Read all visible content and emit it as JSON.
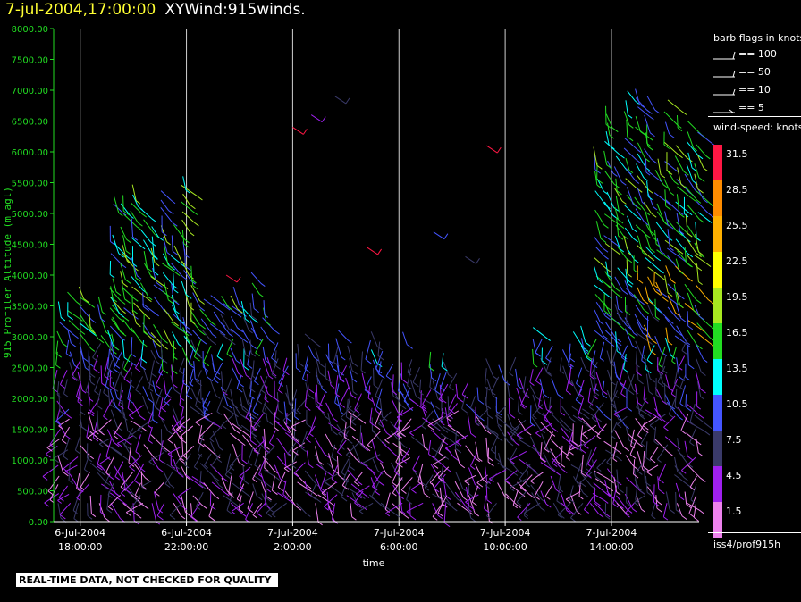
{
  "title": {
    "date": "7-jul-2004,17:00:00",
    "main": "XYWind:915winds."
  },
  "legend_barbs": {
    "title": "barb flags in knots",
    "items": [
      "== 100",
      "== 50",
      "== 10",
      "== 5"
    ]
  },
  "legend_speed": {
    "title": "wind-speed: knots",
    "levels": [
      {
        "label": "31.5",
        "color": "#ff1744"
      },
      {
        "label": "28.5",
        "color": "#ff8c00"
      },
      {
        "label": "25.5",
        "color": "#ffb000"
      },
      {
        "label": "22.5",
        "color": "#ffff00"
      },
      {
        "label": "19.5",
        "color": "#a8e820"
      },
      {
        "label": "16.5",
        "color": "#22dd22"
      },
      {
        "label": "13.5",
        "color": "#00ffff"
      },
      {
        "label": "10.5",
        "color": "#4455ff"
      },
      {
        "label": "7.5",
        "color": "#3a3a6a"
      },
      {
        "label": "4.5",
        "color": "#a020f0"
      },
      {
        "label": "1.5",
        "color": "#ee82ee"
      }
    ]
  },
  "source": "iss4/prof915h",
  "footer_note": "REAL-TIME DATA, NOT CHECKED FOR QUALITY",
  "chart_data": {
    "type": "scatter",
    "title": "7-jul-2004,17:00:00 XYWind:915winds.",
    "xlabel": "time",
    "ylabel": "915 Profiler Altitude (m agl)",
    "ylim": [
      0,
      8000
    ],
    "yticks": [
      "0.00",
      "500.00",
      "1000.00",
      "1500.00",
      "2000.00",
      "2500.00",
      "3000.00",
      "3500.00",
      "4000.00",
      "4500.00",
      "5000.00",
      "5500.00",
      "6000.00",
      "6500.00",
      "7000.00",
      "7500.00",
      "8000.00"
    ],
    "xlim_hours": [
      -1,
      23.3
    ],
    "xticks": [
      {
        "hour": 0,
        "line1": "6-Jul-2004",
        "line2": "18:00:00"
      },
      {
        "hour": 4,
        "line1": "6-Jul-2004",
        "line2": "22:00:00"
      },
      {
        "hour": 8,
        "line1": "7-Jul-2004",
        "line2": "2:00:00"
      },
      {
        "hour": 12,
        "line1": "7-Jul-2004",
        "line2": "6:00:00"
      },
      {
        "hour": 16,
        "line1": "7-Jul-2004",
        "line2": "10:00:00"
      },
      {
        "hour": 20,
        "line1": "7-Jul-2004",
        "line2": "14:00:00"
      }
    ],
    "grid": "vertical",
    "legend": "right",
    "marker": "wind-barb",
    "series_profiles": [
      {
        "hours": [
          -0.8,
          1.2
        ],
        "top": 4050,
        "speed": "mixed"
      },
      {
        "hours": [
          1.2,
          4.2
        ],
        "top": 5600,
        "speed": "mixed"
      },
      {
        "hours": [
          4.2,
          7.0
        ],
        "top": 4200,
        "speed": "mixed"
      },
      {
        "hours": [
          7.0,
          10.2
        ],
        "top": 3200,
        "speed": "10.5"
      },
      {
        "hours": [
          10.2,
          13.8
        ],
        "top": 3100,
        "speed": "10.5"
      },
      {
        "hours": [
          13.8,
          17.0
        ],
        "top": 2600,
        "speed": "7.5"
      },
      {
        "hours": [
          17.0,
          19.4
        ],
        "top": 3300,
        "speed": "10.5"
      },
      {
        "hours": [
          19.4,
          23.2
        ],
        "top": 7000,
        "speed": "mixed"
      }
    ]
  }
}
